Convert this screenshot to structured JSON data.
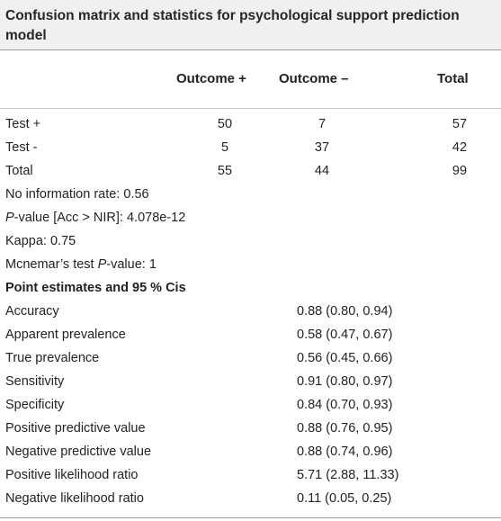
{
  "caption": "Confusion matrix and statistics for psychological support prediction model",
  "header": {
    "col_pos": "Outcome +",
    "col_neg": "Outcome –",
    "col_total": "Total"
  },
  "matrix": [
    {
      "label": "Test +",
      "pos": "50",
      "neg": "7",
      "total": "57"
    },
    {
      "label": "Test -",
      "pos": "5",
      "neg": "37",
      "total": "42"
    },
    {
      "label": "Total",
      "pos": "55",
      "neg": "44",
      "total": "99"
    }
  ],
  "stats": {
    "nir": "No information rate: 0.56",
    "pvalue_prefix": "P",
    "pvalue_rest": "-value [Acc > NIR]: 4.078e-12",
    "kappa": "Kappa: 0.75",
    "mcnemar_prefix": "Mcnemar’s test ",
    "mcnemar_italic": "P",
    "mcnemar_rest": "-value: 1"
  },
  "estimates_heading": "Point estimates and 95 % Cis",
  "estimates": [
    {
      "label": "Accuracy",
      "value": "0.88 (0.80, 0.94)"
    },
    {
      "label": "Apparent prevalence",
      "value": "0.58 (0.47, 0.67)"
    },
    {
      "label": "True prevalence",
      "value": "0.56 (0.45, 0.66)"
    },
    {
      "label": "Sensitivity",
      "value": "0.91 (0.80, 0.97)"
    },
    {
      "label": "Specificity",
      "value": "0.84 (0.70, 0.93)"
    },
    {
      "label": "Positive predictive value",
      "value": "0.88 (0.76, 0.95)"
    },
    {
      "label": "Negative predictive value",
      "value": "0.88 (0.74, 0.96)"
    },
    {
      "label": "Positive likelihood ratio",
      "value": "5.71 (2.88, 11.33)"
    },
    {
      "label": "Negative likelihood ratio",
      "value": "0.11 (0.05, 0.25)"
    }
  ]
}
